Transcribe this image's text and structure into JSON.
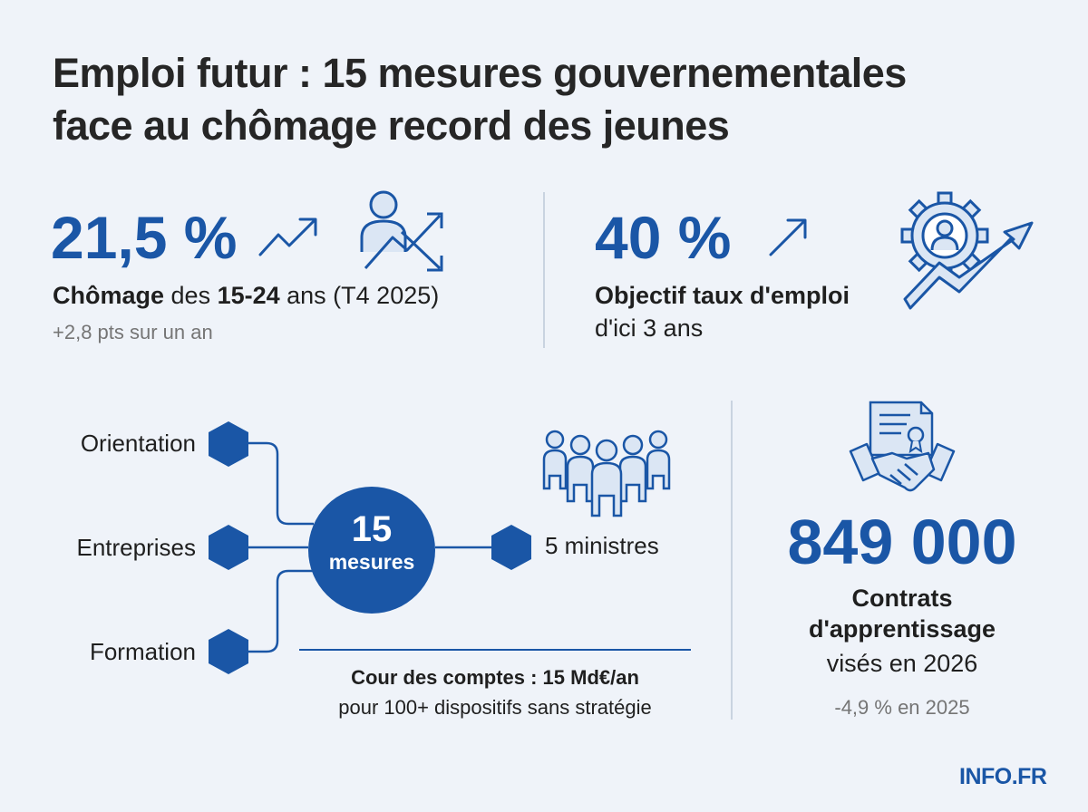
{
  "title": {
    "line1": "Emploi futur : 15 mesures gouvernementales",
    "line2": "face au chômage record des jeunes"
  },
  "stat_chomage": {
    "value": "21,5 %",
    "label_bold_1": "Chômage",
    "label_text_1": " des ",
    "label_bold_2": "15-24",
    "label_text_2": " ans (T4 2025)",
    "change": "+2,8 pts sur un an"
  },
  "stat_emploi": {
    "value": "40 %",
    "label": "Objectif taux d'emploi",
    "sublabel": "d'ici 3 ans"
  },
  "mesures": {
    "axes": [
      "Orientation",
      "Entreprises",
      "Formation"
    ],
    "center_number": "15",
    "center_label": "mesures",
    "ministres": "5 ministres"
  },
  "cour_des_comptes": {
    "line1": "Cour des comptes : 15 Md€/an",
    "line2": "pour 100+ dispositifs sans stratégie"
  },
  "apprentissage": {
    "value": "849 000",
    "label_line1": "Contrats",
    "label_line2": "d'apprentissage",
    "label_line3": "visés en 2026",
    "change": "-4,9 % en 2025"
  },
  "logo": "INFO.FR",
  "colors": {
    "accent": "#1a56a6",
    "background": "#eff3f9",
    "text": "#1f1f1f",
    "muted": "#757575"
  },
  "icons": [
    "trend-up-arrow-icon",
    "person-growth-icon",
    "gear-person-icon",
    "people-group-icon",
    "contract-handshake-icon"
  ]
}
